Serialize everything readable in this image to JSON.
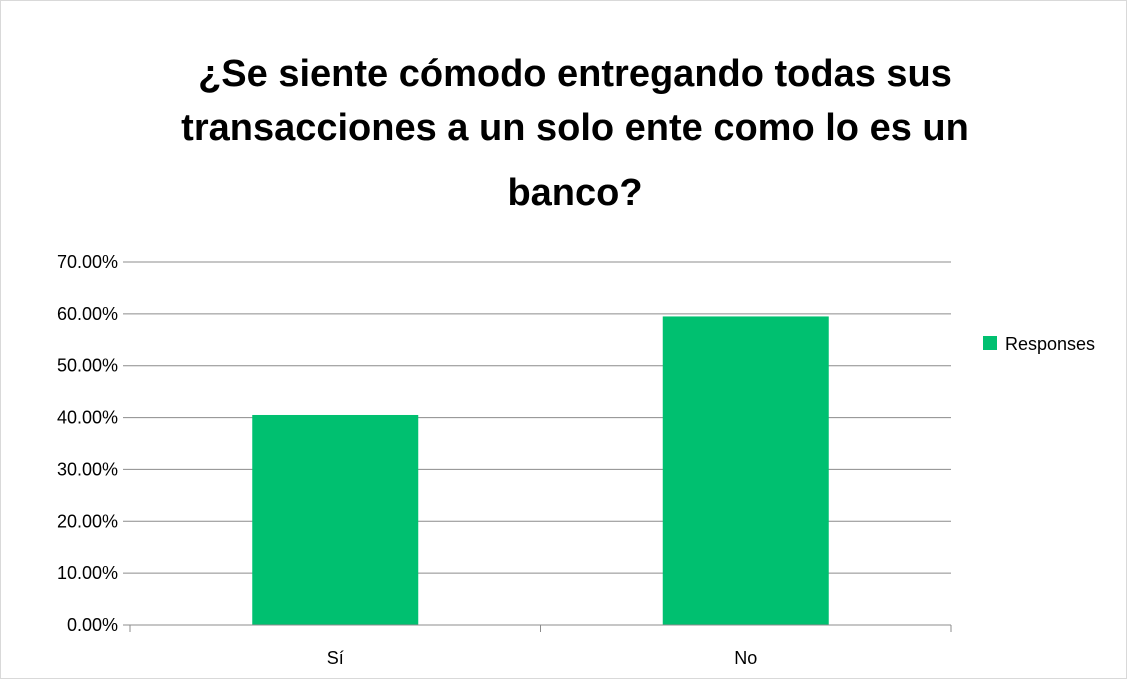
{
  "chart_data": {
    "type": "bar",
    "title_lines": [
      "¿Se siente cómodo entregando todas sus",
      "transacciones a un solo ente como lo es un",
      "banco?"
    ],
    "categories": [
      "Sí",
      "No"
    ],
    "series": [
      {
        "name": "Responses",
        "values": [
          40.5,
          59.5
        ]
      }
    ],
    "y_ticks": [
      "0.00%",
      "10.00%",
      "20.00%",
      "30.00%",
      "40.00%",
      "50.00%",
      "60.00%",
      "70.00%"
    ],
    "ylim": [
      0,
      70
    ],
    "grid": true,
    "legend_position": "right",
    "colors": {
      "bar": "#00c070",
      "grid": "#8c8c8c",
      "axis": "#8c8c8c"
    }
  }
}
